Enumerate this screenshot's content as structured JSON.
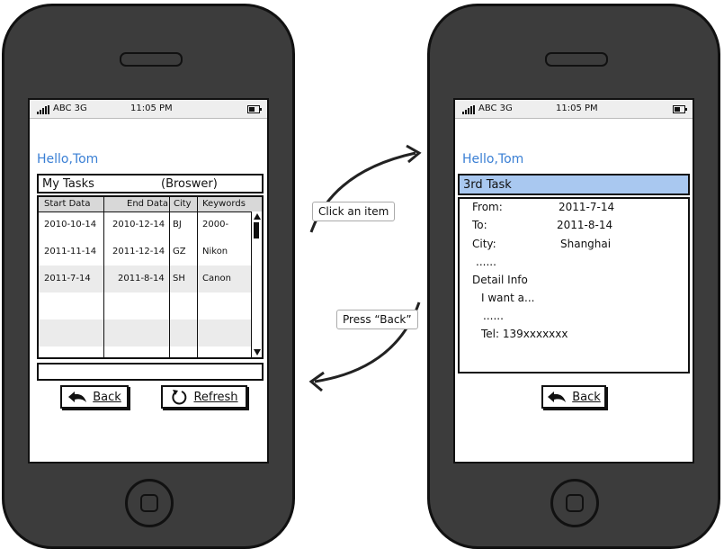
{
  "status_bar": {
    "carrier": "ABC 3G",
    "time": "11:05 PM"
  },
  "left_screen": {
    "greeting": "Hello,Tom",
    "title": "My Tasks",
    "title_hint": "(Broswer)",
    "columns": [
      "Start Data",
      "End Data",
      "City",
      "Keywords"
    ],
    "rows": [
      [
        "2010-10-14",
        "2010-12-14",
        "BJ",
        "2000-"
      ],
      [
        "2011-11-14",
        "2011-12-14",
        "GZ",
        "Nikon"
      ],
      [
        "2011-7-14",
        "2011-8-14",
        "SH",
        "Canon"
      ]
    ],
    "back_label": "Back",
    "refresh_label": "Refresh"
  },
  "right_screen": {
    "greeting": "Hello,Tom",
    "header": "3rd Task",
    "from_label": "From:",
    "from_value": "2011-7-14",
    "to_label": "To:",
    "to_value": "2011-8-14",
    "city_label": "City:",
    "city_value": "Shanghai",
    "ellipsis1": "......",
    "detail_label": "Detail Info",
    "detail_text": "I want a...",
    "ellipsis2": "......",
    "tel": "Tel: 139xxxxxxx",
    "back_label": "Back"
  },
  "annotations": {
    "click_item": "Click an item",
    "press_back": "Press “Back”"
  },
  "colors": {
    "accent": "#3a7fd4",
    "selection": "#a9c8f0",
    "phone_body": "#3c3c3c"
  },
  "icons": {
    "back": "back-arrow-icon",
    "refresh": "refresh-icon"
  }
}
